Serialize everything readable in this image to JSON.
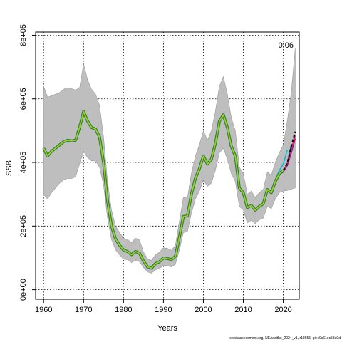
{
  "chart_data": {
    "type": "line",
    "xlabel": "Years",
    "ylabel": "SSB",
    "xlim": [
      1958,
      2024
    ],
    "ylim": [
      -30000,
      810000
    ],
    "xticks": [
      1960,
      1970,
      1980,
      1990,
      2000,
      2010,
      2020
    ],
    "xtick_labels": [
      "1960",
      "1970",
      "1980",
      "1990",
      "2000",
      "2010",
      "2020"
    ],
    "yticks": [
      0,
      200000,
      400000,
      600000,
      800000
    ],
    "ytick_labels": [
      "0e+00",
      "2e+05",
      "4e+05",
      "6e+05",
      "8e+05"
    ],
    "grid": true,
    "annotation": "0.06",
    "footer": "stockassessment.org, NEAsaithe_2024_v1, r18655, git:c9c61ec53a0d",
    "colors": {
      "band": "#bebebe",
      "band_outline": "#9a9a9a",
      "main_outer": "#2e7d32",
      "main_inner": "#9acd32",
      "retro_1": "#1e3a8a",
      "retro_2": "#7b1fa2",
      "retro_3": "#e91e63",
      "retro_4": "#00bcd4",
      "final_est": "#000000"
    },
    "years": [
      1960,
      1961,
      1962,
      1963,
      1964,
      1965,
      1966,
      1967,
      1968,
      1969,
      1970,
      1971,
      1972,
      1973,
      1974,
      1975,
      1976,
      1977,
      1978,
      1979,
      1980,
      1981,
      1982,
      1983,
      1984,
      1985,
      1986,
      1987,
      1988,
      1989,
      1990,
      1991,
      1992,
      1993,
      1994,
      1995,
      1996,
      1997,
      1998,
      1999,
      2000,
      2001,
      2002,
      2003,
      2004,
      2005,
      2006,
      2007,
      2008,
      2009,
      2010,
      2011,
      2012,
      2013,
      2014,
      2015,
      2016,
      2017,
      2018,
      2019,
      2020
    ],
    "estimate": [
      445000,
      420000,
      435000,
      445000,
      455000,
      465000,
      470000,
      468000,
      470000,
      510000,
      560000,
      530000,
      510000,
      505000,
      480000,
      400000,
      280000,
      200000,
      160000,
      140000,
      125000,
      120000,
      110000,
      120000,
      115000,
      90000,
      72000,
      68000,
      82000,
      88000,
      100000,
      98000,
      95000,
      105000,
      165000,
      230000,
      232000,
      300000,
      350000,
      380000,
      420000,
      395000,
      410000,
      460000,
      530000,
      550000,
      510000,
      450000,
      420000,
      320000,
      305000,
      258000,
      265000,
      250000,
      262000,
      270000,
      315000,
      305000,
      340000,
      365000,
      375000
    ],
    "upper": [
      640000,
      605000,
      610000,
      615000,
      620000,
      630000,
      635000,
      632000,
      628000,
      635000,
      710000,
      660000,
      630000,
      615000,
      580000,
      480000,
      340000,
      250000,
      200000,
      180000,
      162000,
      158000,
      148000,
      162000,
      156000,
      118000,
      98000,
      92000,
      110000,
      118000,
      132000,
      130000,
      124000,
      140000,
      215000,
      290000,
      288000,
      365000,
      420000,
      455000,
      500000,
      470000,
      500000,
      560000,
      640000,
      670000,
      615000,
      540000,
      500000,
      385000,
      365000,
      300000,
      310000,
      290000,
      305000,
      315000,
      370000,
      360000,
      400000,
      430000,
      455000
    ],
    "lower": [
      300000,
      285000,
      305000,
      320000,
      335000,
      345000,
      350000,
      350000,
      355000,
      395000,
      435000,
      415000,
      405000,
      405000,
      385000,
      330000,
      225000,
      158000,
      126000,
      110000,
      96000,
      94000,
      85000,
      92000,
      88000,
      70000,
      56000,
      52000,
      62000,
      67000,
      76000,
      75000,
      72000,
      80000,
      125000,
      180000,
      182000,
      240000,
      285000,
      310000,
      345000,
      325000,
      335000,
      375000,
      430000,
      445000,
      410000,
      365000,
      340000,
      262000,
      250000,
      210000,
      218000,
      208000,
      220000,
      225000,
      262000,
      255000,
      285000,
      305000,
      310000
    ],
    "band_tail_years": [
      2020,
      2021,
      2022,
      2023
    ],
    "band_tail_upper": [
      455000,
      530000,
      620000,
      760000
    ],
    "band_tail_lower": [
      310000,
      312000,
      316000,
      320000
    ],
    "retro_series": [
      {
        "color_key": "retro_4",
        "x": [
          2017,
          2018,
          2019,
          2020,
          2021
        ],
        "y": [
          305000,
          345000,
          375000,
          395000,
          440000
        ]
      },
      {
        "color_key": "retro_1",
        "x": [
          2018,
          2019,
          2020,
          2021,
          2022
        ],
        "y": [
          340000,
          362000,
          372000,
          395000,
          455000
        ]
      },
      {
        "color_key": "retro_2",
        "x": [
          2019,
          2020,
          2021,
          2022,
          2023
        ],
        "y": [
          362000,
          370000,
          390000,
          430000,
          475000
        ]
      },
      {
        "color_key": "retro_3",
        "x": [
          2020,
          2021,
          2022,
          2023
        ],
        "y": [
          372000,
          395000,
          440000,
          485000
        ]
      }
    ],
    "final_dashed": {
      "x": [
        2020,
        2021,
        2022,
        2023
      ],
      "y": [
        375000,
        398000,
        450000,
        497000
      ]
    }
  }
}
